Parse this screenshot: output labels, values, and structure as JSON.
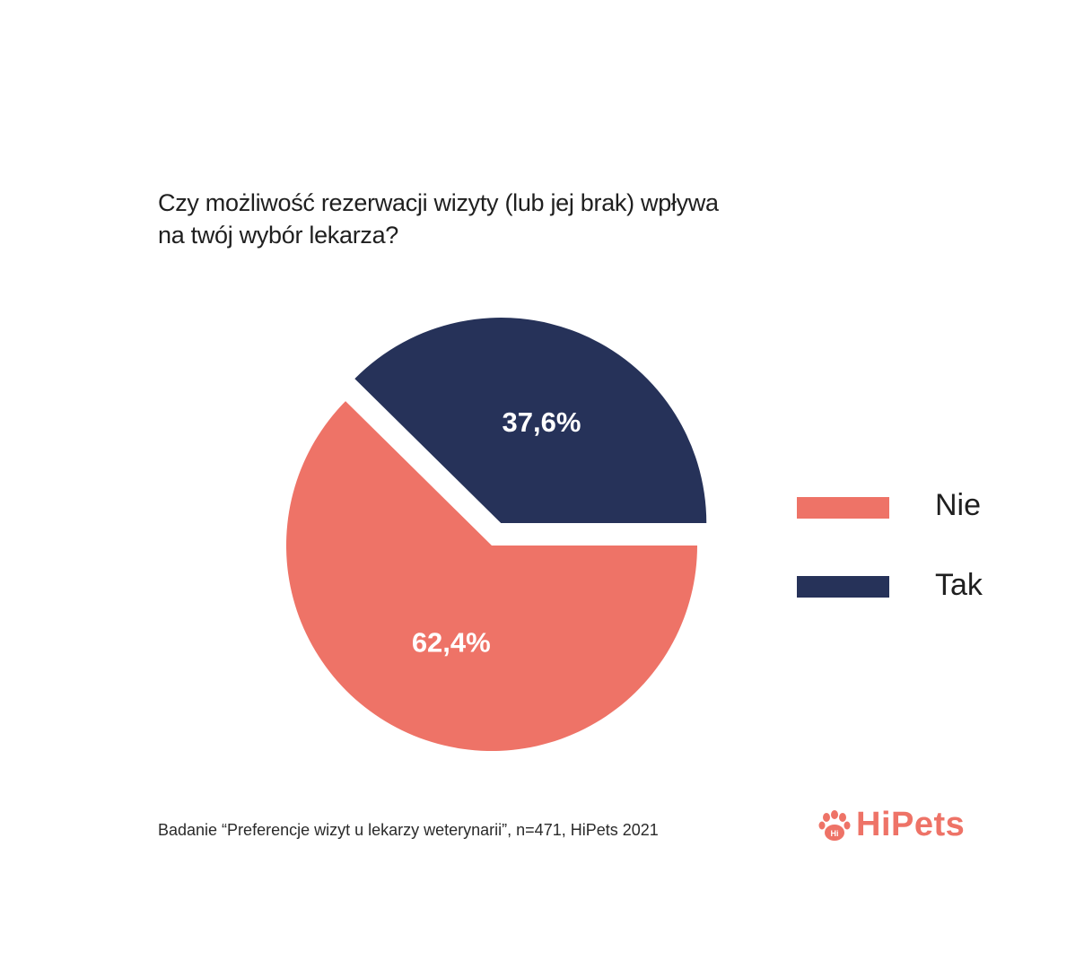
{
  "title": {
    "line1": "Czy możliwość rezerwacji wizyty (lub jej brak) wpływa",
    "line2": "na twój wybór lekarza?"
  },
  "chart_data": {
    "type": "pie",
    "title": "Czy możliwość rezerwacji wizyty (lub jej brak) wpływa na twój wybór lekarza?",
    "unit": "%",
    "slices": [
      {
        "name": "Nie",
        "value": 62.4,
        "label": "62,4%",
        "color": "#ee7367"
      },
      {
        "name": "Tak",
        "value": 37.6,
        "label": "37,6%",
        "color": "#263259"
      }
    ],
    "exploded": "Tak",
    "legend_position": "right"
  },
  "legend": [
    {
      "label": "Nie",
      "color": "#ee7367"
    },
    {
      "label": "Tak",
      "color": "#263259"
    }
  ],
  "source": "Badanie “Preferencje wizyt u lekarzy weterynarii”, n=471, HiPets 2021",
  "brand": {
    "name": "HiPets",
    "icon": "paw-icon",
    "icon_text": "Hi",
    "color": "#ee7367"
  }
}
